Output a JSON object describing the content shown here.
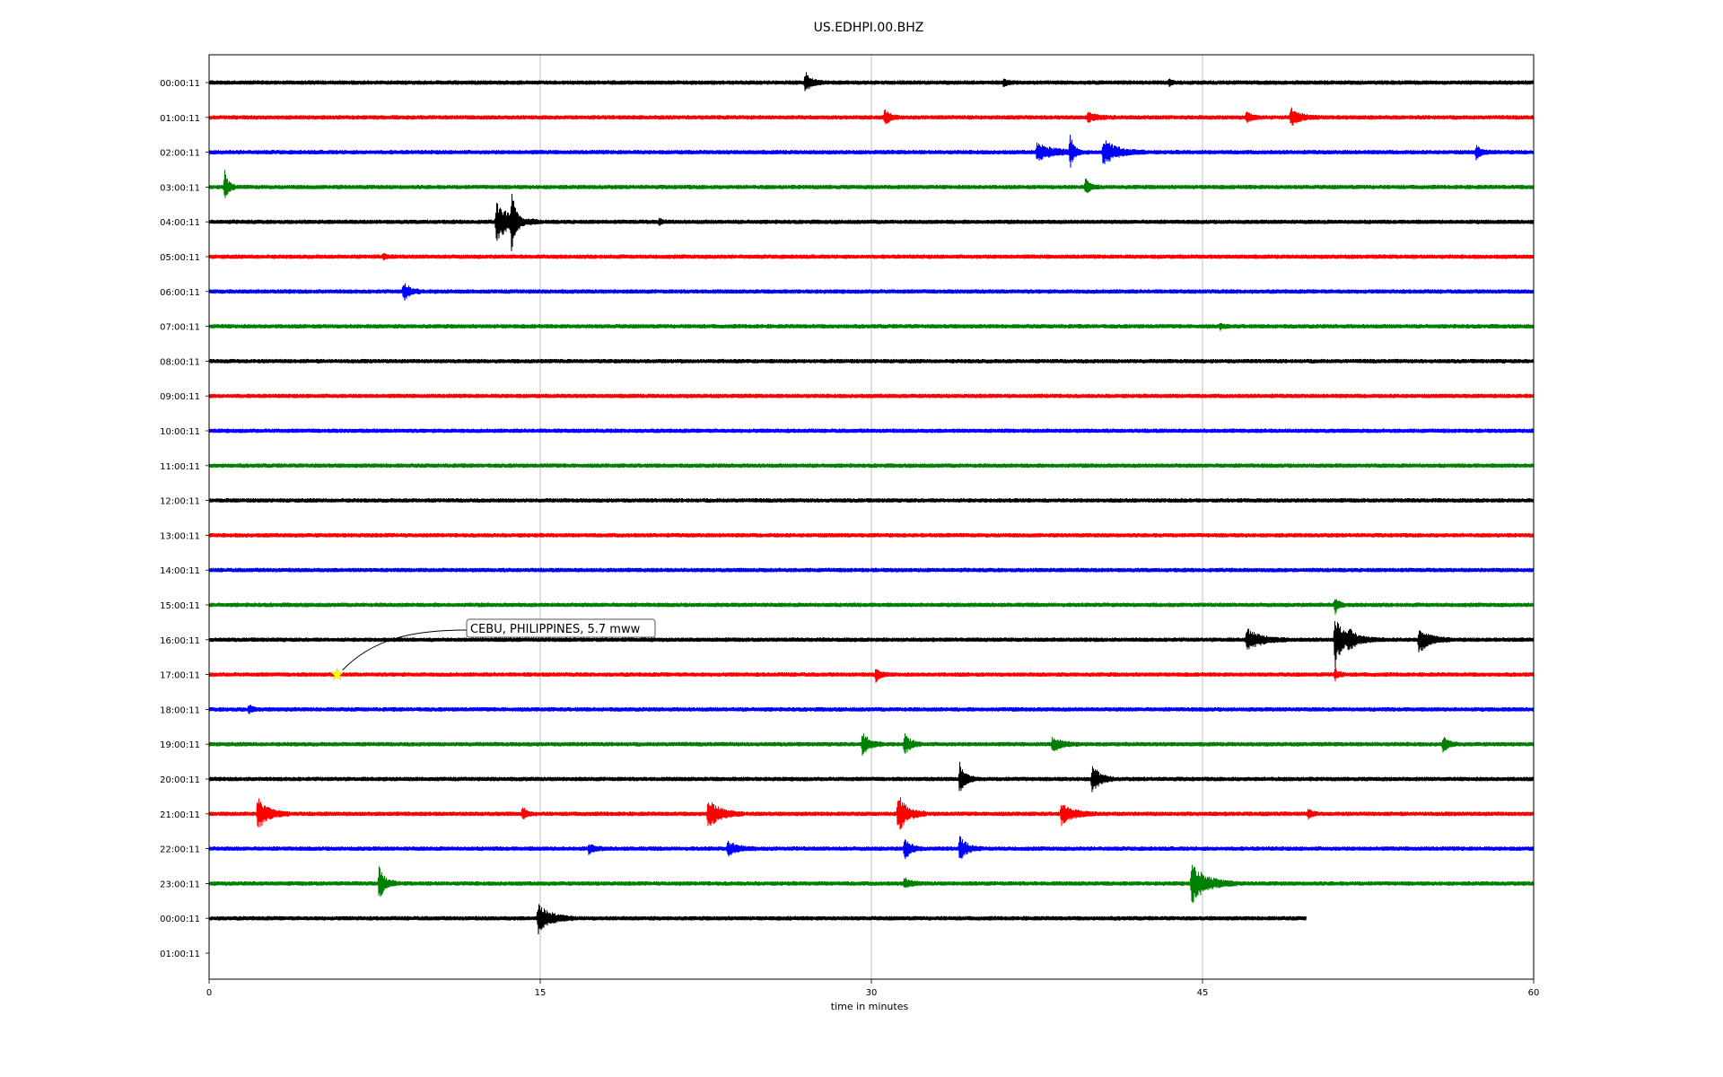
{
  "chart_data": {
    "type": "line",
    "title": "US.EDHPI.00.BHZ",
    "xlabel": "time in minutes",
    "ylabel": "",
    "xlim": [
      0,
      60
    ],
    "x_ticks": [
      "0",
      "15",
      "30",
      "45",
      "60"
    ],
    "x_gridlines": [
      15,
      30,
      45
    ],
    "grid": "vertical",
    "trace_colors": [
      "#000000",
      "#ff0000",
      "#0000ff",
      "#008000"
    ],
    "row_labels": [
      "00:00:11",
      "01:00:11",
      "02:00:11",
      "03:00:11",
      "04:00:11",
      "05:00:11",
      "06:00:11",
      "07:00:11",
      "08:00:11",
      "09:00:11",
      "10:00:11",
      "11:00:11",
      "12:00:11",
      "13:00:11",
      "14:00:11",
      "15:00:11",
      "16:00:11",
      "17:00:11",
      "18:00:11",
      "19:00:11",
      "20:00:11",
      "21:00:11",
      "22:00:11",
      "23:00:11",
      "00:00:11",
      "01:00:11"
    ],
    "traces": [
      {
        "row": 0,
        "end_minute": 60,
        "noise": 2.5,
        "events": [
          {
            "t": 27.0,
            "amp": 12,
            "dur": 0.5
          },
          {
            "t": 36.0,
            "amp": 4,
            "dur": 0.3
          },
          {
            "t": 43.5,
            "amp": 4,
            "dur": 0.2
          }
        ]
      },
      {
        "row": 1,
        "end_minute": 60,
        "noise": 2.5,
        "events": [
          {
            "t": 30.6,
            "amp": 10,
            "dur": 0.4
          },
          {
            "t": 39.8,
            "amp": 5,
            "dur": 0.8
          },
          {
            "t": 47.0,
            "amp": 6,
            "dur": 0.5
          },
          {
            "t": 49.0,
            "amp": 10,
            "dur": 0.8
          }
        ]
      },
      {
        "row": 2,
        "end_minute": 60,
        "noise": 2.5,
        "events": [
          {
            "t": 37.5,
            "amp": 9,
            "dur": 1.5
          },
          {
            "t": 39.0,
            "amp": 20,
            "dur": 0.3
          },
          {
            "t": 40.5,
            "amp": 14,
            "dur": 1.2
          },
          {
            "t": 57.4,
            "amp": 8,
            "dur": 0.4
          }
        ]
      },
      {
        "row": 3,
        "end_minute": 60,
        "noise": 2.5,
        "events": [
          {
            "t": 0.7,
            "amp": 20,
            "dur": 0.3
          },
          {
            "t": 39.7,
            "amp": 9,
            "dur": 0.4
          }
        ]
      },
      {
        "row": 4,
        "end_minute": 60,
        "noise": 2.5,
        "events": [
          {
            "t": 13.0,
            "amp": 22,
            "dur": 1.2
          },
          {
            "t": 13.7,
            "amp": 35,
            "dur": 0.3
          },
          {
            "t": 20.4,
            "amp": 4,
            "dur": 0.2
          }
        ]
      },
      {
        "row": 5,
        "end_minute": 60,
        "noise": 2.5,
        "events": [
          {
            "t": 7.9,
            "amp": 3,
            "dur": 0.3
          }
        ]
      },
      {
        "row": 6,
        "end_minute": 60,
        "noise": 2.5,
        "events": [
          {
            "t": 8.8,
            "amp": 12,
            "dur": 0.5
          }
        ]
      },
      {
        "row": 7,
        "end_minute": 60,
        "noise": 2.5,
        "events": [
          {
            "t": 45.8,
            "amp": 3,
            "dur": 0.3
          }
        ]
      },
      {
        "row": 8,
        "end_minute": 60,
        "noise": 2.5,
        "events": []
      },
      {
        "row": 9,
        "end_minute": 60,
        "noise": 2.5,
        "events": []
      },
      {
        "row": 10,
        "end_minute": 60,
        "noise": 2.5,
        "events": []
      },
      {
        "row": 11,
        "end_minute": 60,
        "noise": 2.5,
        "events": []
      },
      {
        "row": 12,
        "end_minute": 60,
        "noise": 2.5,
        "events": []
      },
      {
        "row": 13,
        "end_minute": 60,
        "noise": 2.5,
        "events": []
      },
      {
        "row": 14,
        "end_minute": 60,
        "noise": 2.5,
        "events": []
      },
      {
        "row": 15,
        "end_minute": 60,
        "noise": 2.5,
        "events": [
          {
            "t": 51.0,
            "amp": 10,
            "dur": 0.3
          }
        ]
      },
      {
        "row": 16,
        "end_minute": 60,
        "noise": 2.5,
        "events": [
          {
            "t": 47.0,
            "amp": 12,
            "dur": 1.2
          },
          {
            "t": 51.0,
            "amp": 34,
            "dur": 0.6
          },
          {
            "t": 51.6,
            "amp": 10,
            "dur": 1.0
          },
          {
            "t": 54.8,
            "amp": 14,
            "dur": 0.9
          }
        ]
      },
      {
        "row": 17,
        "end_minute": 60,
        "noise": 2.5,
        "events": [
          {
            "t": 30.2,
            "amp": 8,
            "dur": 0.4
          },
          {
            "t": 51.0,
            "amp": 7,
            "dur": 0.3
          }
        ]
      },
      {
        "row": 18,
        "end_minute": 60,
        "noise": 2.5,
        "events": [
          {
            "t": 1.8,
            "amp": 5,
            "dur": 0.3
          }
        ]
      },
      {
        "row": 19,
        "end_minute": 60,
        "noise": 2.5,
        "events": [
          {
            "t": 29.6,
            "amp": 14,
            "dur": 0.6
          },
          {
            "t": 31.5,
            "amp": 12,
            "dur": 0.5
          },
          {
            "t": 38.2,
            "amp": 8,
            "dur": 0.8
          },
          {
            "t": 55.9,
            "amp": 10,
            "dur": 0.4
          }
        ]
      },
      {
        "row": 20,
        "end_minute": 60,
        "noise": 2.5,
        "events": [
          {
            "t": 34.0,
            "amp": 18,
            "dur": 0.5
          },
          {
            "t": 40.0,
            "amp": 18,
            "dur": 0.6
          }
        ]
      },
      {
        "row": 21,
        "end_minute": 60,
        "noise": 2.5,
        "events": [
          {
            "t": 2.2,
            "amp": 18,
            "dur": 0.9
          },
          {
            "t": 14.2,
            "amp": 8,
            "dur": 0.3
          },
          {
            "t": 22.6,
            "amp": 16,
            "dur": 1.0
          },
          {
            "t": 31.2,
            "amp": 22,
            "dur": 0.8
          },
          {
            "t": 38.6,
            "amp": 12,
            "dur": 1.0
          },
          {
            "t": 49.8,
            "amp": 6,
            "dur": 0.3
          }
        ]
      },
      {
        "row": 22,
        "end_minute": 60,
        "noise": 2.5,
        "events": [
          {
            "t": 17.2,
            "amp": 5,
            "dur": 0.5
          },
          {
            "t": 23.5,
            "amp": 8,
            "dur": 0.8
          },
          {
            "t": 31.5,
            "amp": 14,
            "dur": 0.5
          },
          {
            "t": 34.0,
            "amp": 14,
            "dur": 0.6
          }
        ]
      },
      {
        "row": 23,
        "end_minute": 60,
        "noise": 2.5,
        "events": [
          {
            "t": 7.7,
            "amp": 18,
            "dur": 0.5
          },
          {
            "t": 31.5,
            "amp": 6,
            "dur": 0.5
          },
          {
            "t": 44.5,
            "amp": 22,
            "dur": 1.3
          }
        ]
      },
      {
        "row": 24,
        "end_minute": 49.7,
        "noise": 2.5,
        "events": [
          {
            "t": 14.9,
            "amp": 18,
            "dur": 1.0
          }
        ]
      }
    ],
    "annotation": {
      "text": "CEBU, PHILIPPINES, 5.7 mww",
      "row": 17,
      "minute": 5.8,
      "marker": "star",
      "marker_color": "#ffff00"
    }
  }
}
